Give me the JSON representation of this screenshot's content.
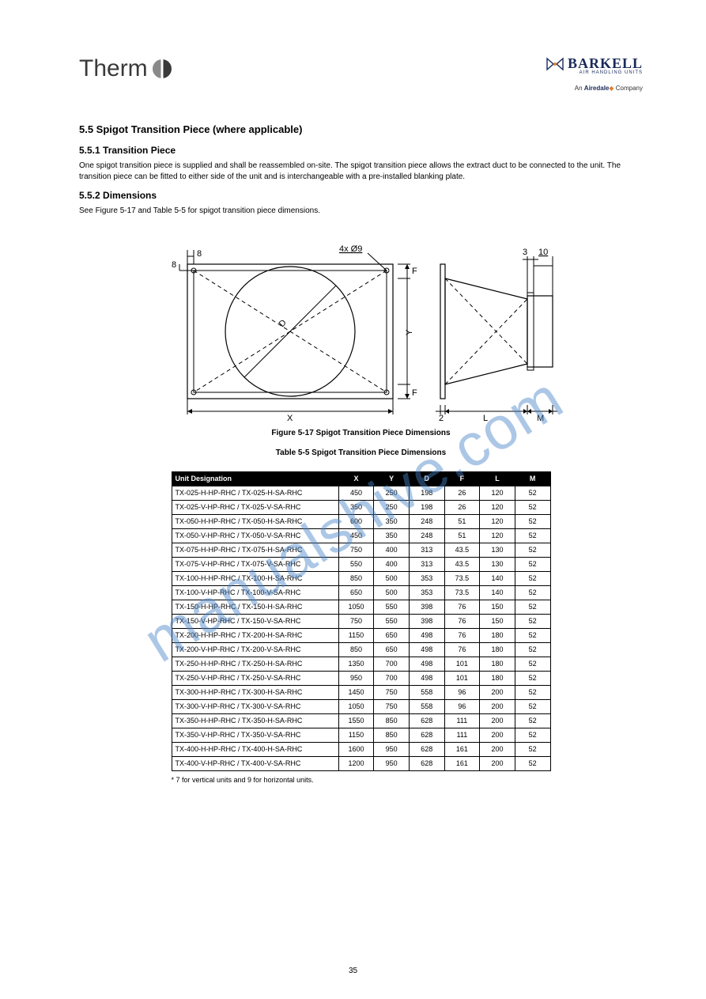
{
  "logo_left": {
    "part1": "Therm",
    "part2": "X"
  },
  "logo_right": {
    "brand": "BARKELL",
    "subtitle": "AIR HANDLING UNITS",
    "footer_prefix": "An ",
    "footer_brand": "Airedale",
    "footer_suffix": " Company"
  },
  "section": {
    "number_title": "5.5 Spigot Transition Piece (where applicable)",
    "intro1": "5.5.1 Transition Piece",
    "intro1_body": "One spigot transition piece is supplied and shall be reassembled on-site. The spigot transition piece allows the extract duct to be connected to the unit. The transition piece can be fitted to either side of the unit and is interchangeable with a pre-installed blanking plate.",
    "intro2": "5.5.2 Dimensions",
    "intro2_body": "See Figure 5-17 and Table 5-5 for spigot transition piece dimensions.",
    "fig_title": "Figure 5-17 Spigot Transition Piece Dimensions",
    "table_title": "Table 5-5 Spigot Transition Piece Dimensions",
    "footnote": "* 7 for vertical units and 9 for horizontal units."
  },
  "diagram": {
    "labels": {
      "eight_left": "8",
      "eight_top": "8",
      "holes": "4x Ø9",
      "F_top": "F",
      "F_bot": "F",
      "three": "3",
      "ten": "10",
      "two": "2",
      "D": "D",
      "Y": "Y",
      "X": "X",
      "L": "L",
      "M": "M"
    },
    "colors": {
      "line": "#000000",
      "dash": "#000000",
      "bg": "#ffffff"
    }
  },
  "table": {
    "headers": [
      "Unit Designation",
      "X",
      "Y",
      "D",
      "F",
      "L",
      "M"
    ],
    "rows": [
      [
        "TX-025-H-HP-RHC / TX-025-H-SA-RHC",
        "450",
        "250",
        "198",
        "26",
        "120",
        "52"
      ],
      [
        "TX-025-V-HP-RHC / TX-025-V-SA-RHC",
        "350",
        "250",
        "198",
        "26",
        "120",
        "52"
      ],
      [
        "TX-050-H-HP-RHC / TX-050-H-SA-RHC",
        "600",
        "350",
        "248",
        "51",
        "120",
        "52"
      ],
      [
        "TX-050-V-HP-RHC / TX-050-V-SA-RHC",
        "450",
        "350",
        "248",
        "51",
        "120",
        "52"
      ],
      [
        "TX-075-H-HP-RHC / TX-075-H-SA-RHC",
        "750",
        "400",
        "313",
        "43.5",
        "130",
        "52"
      ],
      [
        "TX-075-V-HP-RHC / TX-075-V-SA-RHC",
        "550",
        "400",
        "313",
        "43.5",
        "130",
        "52"
      ],
      [
        "TX-100-H-HP-RHC / TX-100-H-SA-RHC",
        "850",
        "500",
        "353",
        "73.5",
        "140",
        "52"
      ],
      [
        "TX-100-V-HP-RHC / TX-100-V-SA-RHC",
        "650",
        "500",
        "353",
        "73.5",
        "140",
        "52"
      ],
      [
        "TX-150-H-HP-RHC / TX-150-H-SA-RHC",
        "1050",
        "550",
        "398",
        "76",
        "150",
        "52"
      ],
      [
        "TX-150-V-HP-RHC / TX-150-V-SA-RHC",
        "750",
        "550",
        "398",
        "76",
        "150",
        "52"
      ],
      [
        "TX-200-H-HP-RHC / TX-200-H-SA-RHC",
        "1150",
        "650",
        "498",
        "76",
        "180",
        "52"
      ],
      [
        "TX-200-V-HP-RHC / TX-200-V-SA-RHC",
        "850",
        "650",
        "498",
        "76",
        "180",
        "52"
      ],
      [
        "TX-250-H-HP-RHC / TX-250-H-SA-RHC",
        "1350",
        "700",
        "498",
        "101",
        "180",
        "52"
      ],
      [
        "TX-250-V-HP-RHC / TX-250-V-SA-RHC",
        "950",
        "700",
        "498",
        "101",
        "180",
        "52"
      ],
      [
        "TX-300-H-HP-RHC / TX-300-H-SA-RHC",
        "1450",
        "750",
        "558",
        "96",
        "200",
        "52"
      ],
      [
        "TX-300-V-HP-RHC / TX-300-V-SA-RHC",
        "1050",
        "750",
        "558",
        "96",
        "200",
        "52"
      ],
      [
        "TX-350-H-HP-RHC / TX-350-H-SA-RHC",
        "1550",
        "850",
        "628",
        "111",
        "200",
        "52"
      ],
      [
        "TX-350-V-HP-RHC / TX-350-V-SA-RHC",
        "1150",
        "850",
        "628",
        "111",
        "200",
        "52"
      ],
      [
        "TX-400-H-HP-RHC / TX-400-H-SA-RHC",
        "1600",
        "950",
        "628",
        "161",
        "200",
        "52"
      ],
      [
        "TX-400-V-HP-RHC / TX-400-V-SA-RHC",
        "1200",
        "950",
        "628",
        "161",
        "200",
        "52"
      ]
    ]
  },
  "page_number": "35",
  "watermark": "manualshive.com"
}
